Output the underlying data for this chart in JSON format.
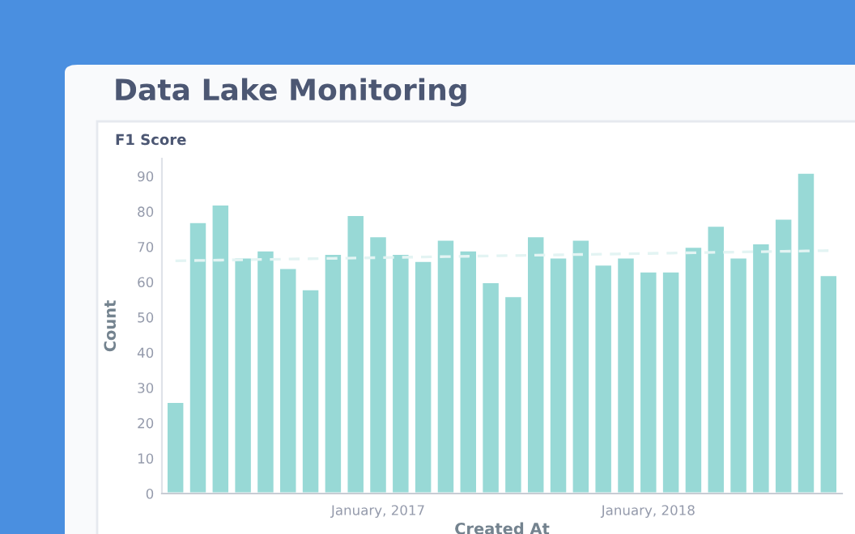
{
  "chart_data": {
    "type": "bar",
    "title": "Data Lake Monitoring",
    "subtitle": "F1 Score",
    "xlabel": "Created At",
    "ylabel": "Count",
    "categories": [
      null,
      null,
      null,
      null,
      null,
      null,
      null,
      null,
      null,
      "January, 2017",
      null,
      null,
      null,
      null,
      null,
      null,
      null,
      null,
      null,
      null,
      null,
      "January, 2018",
      null,
      null,
      null,
      null,
      null,
      null,
      null,
      null
    ],
    "series": [
      {
        "color": "#98d9d6",
        "values": [
          26,
          77,
          82,
          67,
          69,
          64,
          58,
          68,
          79,
          73,
          68,
          66,
          72,
          69,
          60,
          56,
          73,
          67,
          72,
          65,
          67,
          63,
          63,
          70,
          76,
          67,
          71,
          78,
          91,
          62
        ]
      },
      {
        "type": "line",
        "color": "#e3f4f3",
        "line_style": "dashed",
        "values": [
          66.0,
          66.1,
          66.2,
          66.3,
          66.4,
          66.5,
          66.6,
          66.7,
          66.8,
          66.9,
          67.0,
          67.1,
          67.2,
          67.3,
          67.4,
          67.5,
          67.6,
          67.7,
          67.8,
          67.9,
          68.0,
          68.1,
          68.2,
          68.3,
          68.4,
          68.5,
          68.6,
          68.7,
          68.8,
          68.9
        ]
      }
    ],
    "ylim": [
      0,
      95
    ],
    "yticks": [
      0,
      10,
      20,
      30,
      40,
      50,
      60,
      70,
      80,
      90
    ],
    "grid": false,
    "legend": false
  }
}
